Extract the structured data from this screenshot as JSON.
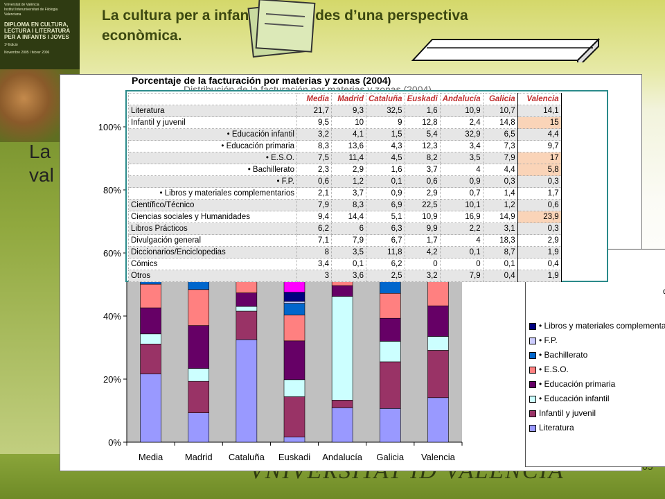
{
  "title": "La cultura per a infants i joves des d’una perspectiva econòmica.",
  "side_text": [
    "La",
    "val"
  ],
  "page_number": "05",
  "bottom_logo": "VNIVERSITAT ID VALÈNCIA",
  "logo": {
    "line1": "Vniversitat de València",
    "line2": "Institut Interuniversitari de Filologia Valenciana",
    "line3": "DIPLOMA EN CULTURA, LECTURA I LITERATURA PER A INFANTS I JOVES",
    "line4": "1ª Edició",
    "line5": "Novembre 2005 / febrer 2006"
  },
  "table": {
    "title": "Porcentaje de la facturación por materias y zonas (2004)",
    "ghost_title": "Distribución de la facturación por materias y zonas (2004)",
    "headers": [
      "Media",
      "Madrid",
      "Cataluña",
      "Euskadi",
      "Andalucía",
      "Galicia",
      "Valencia"
    ],
    "rows": [
      {
        "label": "Literatura",
        "indent": false,
        "values": [
          "21,7",
          "9,3",
          "32,5",
          "1,6",
          "10,9",
          "10,7",
          "14,1"
        ],
        "hl": false
      },
      {
        "label": "Infantil y juvenil",
        "indent": false,
        "values": [
          "9,5",
          "10",
          "9",
          "12,8",
          "2,4",
          "14,8",
          "15"
        ],
        "hl": true
      },
      {
        "label": "• Educación infantil",
        "indent": true,
        "values": [
          "3,2",
          "4,1",
          "1,5",
          "5,4",
          "32,9",
          "6,5",
          "4,4"
        ],
        "hl": false
      },
      {
        "label": "• Educación primaria",
        "indent": true,
        "values": [
          "8,3",
          "13,6",
          "4,3",
          "12,3",
          "3,4",
          "7,3",
          "9,7"
        ],
        "hl": false
      },
      {
        "label": "• E.S.O.",
        "indent": true,
        "values": [
          "7,5",
          "11,4",
          "4,5",
          "8,2",
          "3,5",
          "7,9",
          "17"
        ],
        "hl": true
      },
      {
        "label": "• Bachillerato",
        "indent": true,
        "values": [
          "2,3",
          "2,9",
          "1,6",
          "3,7",
          "4",
          "4,4",
          "5,8"
        ],
        "hl": true
      },
      {
        "label": "• F.P.",
        "indent": true,
        "values": [
          "0,6",
          "1,2",
          "0,1",
          "0,6",
          "0,9",
          "0,3",
          "0,3"
        ],
        "hl": false
      },
      {
        "label": "• Libros y materiales complementarios",
        "indent": true,
        "values": [
          "2,1",
          "3,7",
          "0,9",
          "2,9",
          "0,7",
          "1,4",
          "1,7"
        ],
        "hl": false
      },
      {
        "label": "Científico/Técnico",
        "indent": false,
        "values": [
          "7,9",
          "8,3",
          "6,9",
          "22,5",
          "10,1",
          "1,2",
          "0,6"
        ],
        "hl": false
      },
      {
        "label": "Ciencias sociales y Humanidades",
        "indent": false,
        "values": [
          "9,4",
          "14,4",
          "5,1",
          "10,9",
          "16,9",
          "14,9",
          "23,9"
        ],
        "hl": true
      },
      {
        "label": "Libros Prácticos",
        "indent": false,
        "values": [
          "6,2",
          "6",
          "6,3",
          "9,9",
          "2,2",
          "3,1",
          "0,3"
        ],
        "hl": false
      },
      {
        "label": "Divulgación general",
        "indent": false,
        "values": [
          "7,1",
          "7,9",
          "6,7",
          "1,7",
          "4",
          "18,3",
          "2,9"
        ],
        "hl": false
      },
      {
        "label": "Diccionarios/Enciclopedias",
        "indent": false,
        "values": [
          "8",
          "3,5",
          "11,8",
          "4,2",
          "0,1",
          "8,7",
          "1,9"
        ],
        "hl": false
      },
      {
        "label": "Cómics",
        "indent": false,
        "values": [
          "3,4",
          "0,1",
          "6,2",
          "0",
          "0",
          "0,1",
          "0,4"
        ],
        "hl": false
      },
      {
        "label": "Otros",
        "indent": false,
        "values": [
          "3",
          "3,6",
          "2,5",
          "3,2",
          "7,9",
          "0,4",
          "1,9"
        ],
        "hl": false
      }
    ]
  },
  "legend_partial_text": "des",
  "colors": {
    "Literatura": "#9999ff",
    "Infantil y juvenil": "#993366",
    "• Educación infantil": "#ccffff",
    "• Educación primaria": "#660066",
    "• E.S.O.": "#ff8080",
    "• Bachillerato": "#0066cc",
    "• F.P.": "#ccccff",
    "• Libros y materiales complementarios": "#000080",
    "Científico/Técnico": "#ff00ff",
    "Ciencias sociales y Humanidades": "#ffff00",
    "Libros Prácticos": "#00ffff",
    "Divulgación general": "#800080",
    "Diccionarios/Enciclopedias": "#800000",
    "Cómics": "#008080",
    "Otros": "#0000ff"
  },
  "chart_data": {
    "type": "bar",
    "stacked": true,
    "percent_stacked": true,
    "categories": [
      "Media",
      "Madrid",
      "Cataluña",
      "Euskadi",
      "Andalucía",
      "Galicia",
      "Valencia"
    ],
    "y_ticks": [
      "0%",
      "20%",
      "40%",
      "60%",
      "80%",
      "100%"
    ],
    "ylim": [
      0,
      100
    ],
    "grid": false,
    "legend_position": "right",
    "legend_visible": [
      "Literatura",
      "Infantil y juvenil",
      "• Educación infantil",
      "• Educación primaria",
      "• E.S.O.",
      "• Bachillerato",
      "• F.P.",
      "• Libros y materiales complementarios"
    ],
    "series": [
      {
        "name": "Literatura",
        "values": [
          21.7,
          9.3,
          32.5,
          1.6,
          10.9,
          10.7,
          14.1
        ]
      },
      {
        "name": "Infantil y juvenil",
        "values": [
          9.5,
          10,
          9,
          12.8,
          2.4,
          14.8,
          15
        ]
      },
      {
        "name": "• Educación infantil",
        "values": [
          3.2,
          4.1,
          1.5,
          5.4,
          32.9,
          6.5,
          4.4
        ]
      },
      {
        "name": "• Educación primaria",
        "values": [
          8.3,
          13.6,
          4.3,
          12.3,
          3.4,
          7.3,
          9.7
        ]
      },
      {
        "name": "• E.S.O.",
        "values": [
          7.5,
          11.4,
          4.5,
          8.2,
          3.5,
          7.9,
          17
        ]
      },
      {
        "name": "• Bachillerato",
        "values": [
          2.3,
          2.9,
          1.6,
          3.7,
          4,
          4.4,
          5.8
        ]
      },
      {
        "name": "• F.P.",
        "values": [
          0.6,
          1.2,
          0.1,
          0.6,
          0.9,
          0.3,
          0.3
        ]
      },
      {
        "name": "• Libros y materiales complementarios",
        "values": [
          2.1,
          3.7,
          0.9,
          2.9,
          0.7,
          1.4,
          1.7
        ]
      },
      {
        "name": "Científico/Técnico",
        "values": [
          7.9,
          8.3,
          6.9,
          22.5,
          10.1,
          1.2,
          0.6
        ]
      },
      {
        "name": "Ciencias sociales y Humanidades",
        "values": [
          9.4,
          14.4,
          5.1,
          10.9,
          16.9,
          14.9,
          23.9
        ]
      },
      {
        "name": "Libros Prácticos",
        "values": [
          6.2,
          6,
          6.3,
          9.9,
          2.2,
          3.1,
          0.3
        ]
      },
      {
        "name": "Divulgación general",
        "values": [
          7.1,
          7.9,
          6.7,
          1.7,
          4,
          18.3,
          2.9
        ]
      },
      {
        "name": "Diccionarios/Enciclopedias",
        "values": [
          8,
          3.5,
          11.8,
          4.2,
          0.1,
          8.7,
          1.9
        ]
      },
      {
        "name": "Cómics",
        "values": [
          3.4,
          0.1,
          6.2,
          0,
          0,
          0.1,
          0.4
        ]
      },
      {
        "name": "Otros",
        "values": [
          3,
          3.6,
          2.5,
          3.2,
          7.9,
          0.4,
          1.9
        ]
      }
    ]
  }
}
